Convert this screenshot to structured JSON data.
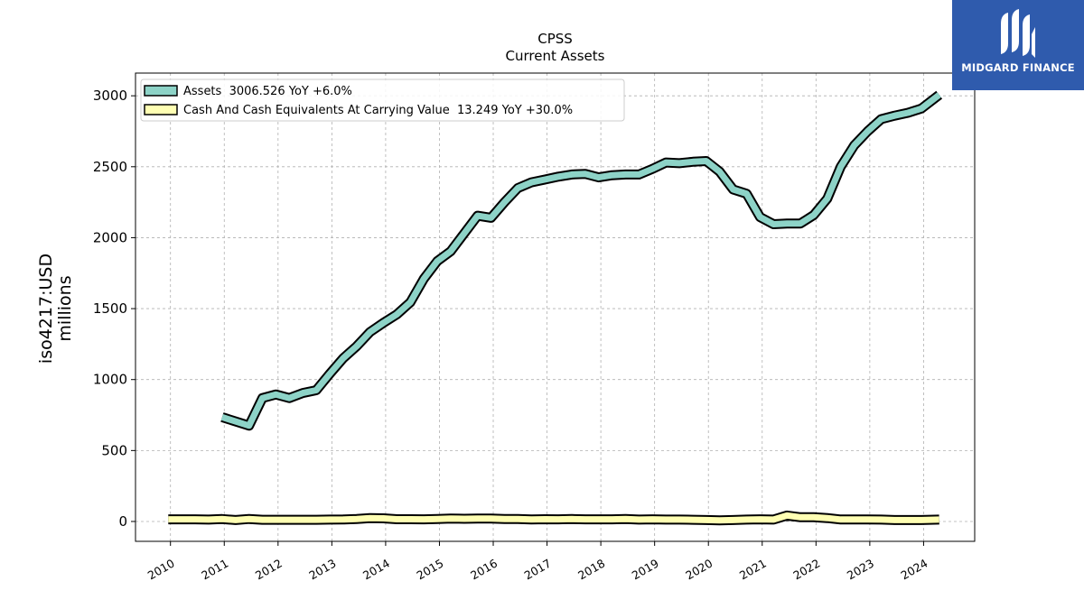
{
  "brand": {
    "name": "MIDGARD FINANCE",
    "icon": "midgard-logo-icon",
    "color": "#2f5bad"
  },
  "chart_data": {
    "type": "line",
    "title": "CPSS",
    "subtitle": "Current  Assets",
    "ylabel_line1": "iso4217:USD",
    "ylabel_line2": "millions",
    "ylim": [
      -140,
      3160
    ],
    "xlim": [
      2009.35,
      2024.95
    ],
    "yticks": [
      0,
      500,
      1000,
      1500,
      2000,
      2500,
      3000
    ],
    "xticks": [
      2010,
      2011,
      2012,
      2013,
      2014,
      2015,
      2016,
      2017,
      2018,
      2019,
      2020,
      2021,
      2022,
      2023,
      2024
    ],
    "grid": true,
    "legend_position": "top-left",
    "series": [
      {
        "name": "Assets  3006.526 YoY +6.0%",
        "fill": "#8dd3c7",
        "x": [
          2010.96,
          2011.46,
          2011.71,
          2011.96,
          2012.21,
          2012.46,
          2012.71,
          2012.96,
          2013.21,
          2013.46,
          2013.71,
          2013.96,
          2014.21,
          2014.46,
          2014.71,
          2014.96,
          2015.21,
          2015.46,
          2015.71,
          2015.96,
          2016.21,
          2016.46,
          2016.71,
          2016.96,
          2017.21,
          2017.46,
          2017.71,
          2017.96,
          2018.21,
          2018.46,
          2018.71,
          2018.96,
          2019.21,
          2019.46,
          2019.71,
          2019.96,
          2020.21,
          2020.46,
          2020.71,
          2020.96,
          2021.21,
          2021.46,
          2021.71,
          2021.96,
          2022.21,
          2022.46,
          2022.71,
          2022.96,
          2023.21,
          2023.46,
          2023.71,
          2023.96,
          2024.29
        ],
        "values": [
          735,
          675,
          870,
          895,
          870,
          905,
          925,
          1040,
          1150,
          1235,
          1335,
          1400,
          1460,
          1545,
          1710,
          1835,
          1905,
          2030,
          2155,
          2140,
          2250,
          2350,
          2390,
          2410,
          2430,
          2445,
          2450,
          2425,
          2440,
          2445,
          2445,
          2485,
          2530,
          2525,
          2535,
          2540,
          2465,
          2340,
          2310,
          2145,
          2095,
          2100,
          2100,
          2160,
          2275,
          2500,
          2650,
          2750,
          2835,
          2860,
          2880,
          2910,
          3006.526
        ]
      },
      {
        "name": "Cash And Cash Equivalents At Carrying Value  13.249 YoY +30.0%",
        "fill": "#ffffb3",
        "x": [
          2009.96,
          2010.21,
          2010.46,
          2010.71,
          2010.96,
          2011.21,
          2011.46,
          2011.71,
          2011.96,
          2012.21,
          2012.46,
          2012.71,
          2012.96,
          2013.21,
          2013.46,
          2013.71,
          2013.96,
          2014.21,
          2014.46,
          2014.71,
          2014.96,
          2015.21,
          2015.46,
          2015.71,
          2015.96,
          2016.21,
          2016.46,
          2016.71,
          2016.96,
          2017.21,
          2017.46,
          2017.71,
          2017.96,
          2018.21,
          2018.46,
          2018.71,
          2018.96,
          2019.21,
          2019.46,
          2019.71,
          2019.96,
          2020.21,
          2020.46,
          2020.71,
          2020.96,
          2021.21,
          2021.46,
          2021.71,
          2021.96,
          2022.21,
          2022.46,
          2022.71,
          2022.96,
          2023.21,
          2023.46,
          2023.71,
          2023.96,
          2024.29
        ],
        "values": [
          15,
          15,
          15,
          13,
          17,
          10,
          18,
          12,
          12,
          12,
          12,
          12,
          13,
          14,
          18,
          24,
          22,
          16,
          16,
          15,
          18,
          20,
          19,
          21,
          20,
          18,
          18,
          14,
          16,
          15,
          17,
          15,
          15,
          15,
          18,
          13,
          15,
          13,
          13,
          12,
          10,
          8,
          10,
          13,
          15,
          13,
          42,
          30,
          30,
          24,
          14,
          14,
          14,
          13,
          10,
          10,
          10,
          13.249
        ]
      }
    ]
  }
}
